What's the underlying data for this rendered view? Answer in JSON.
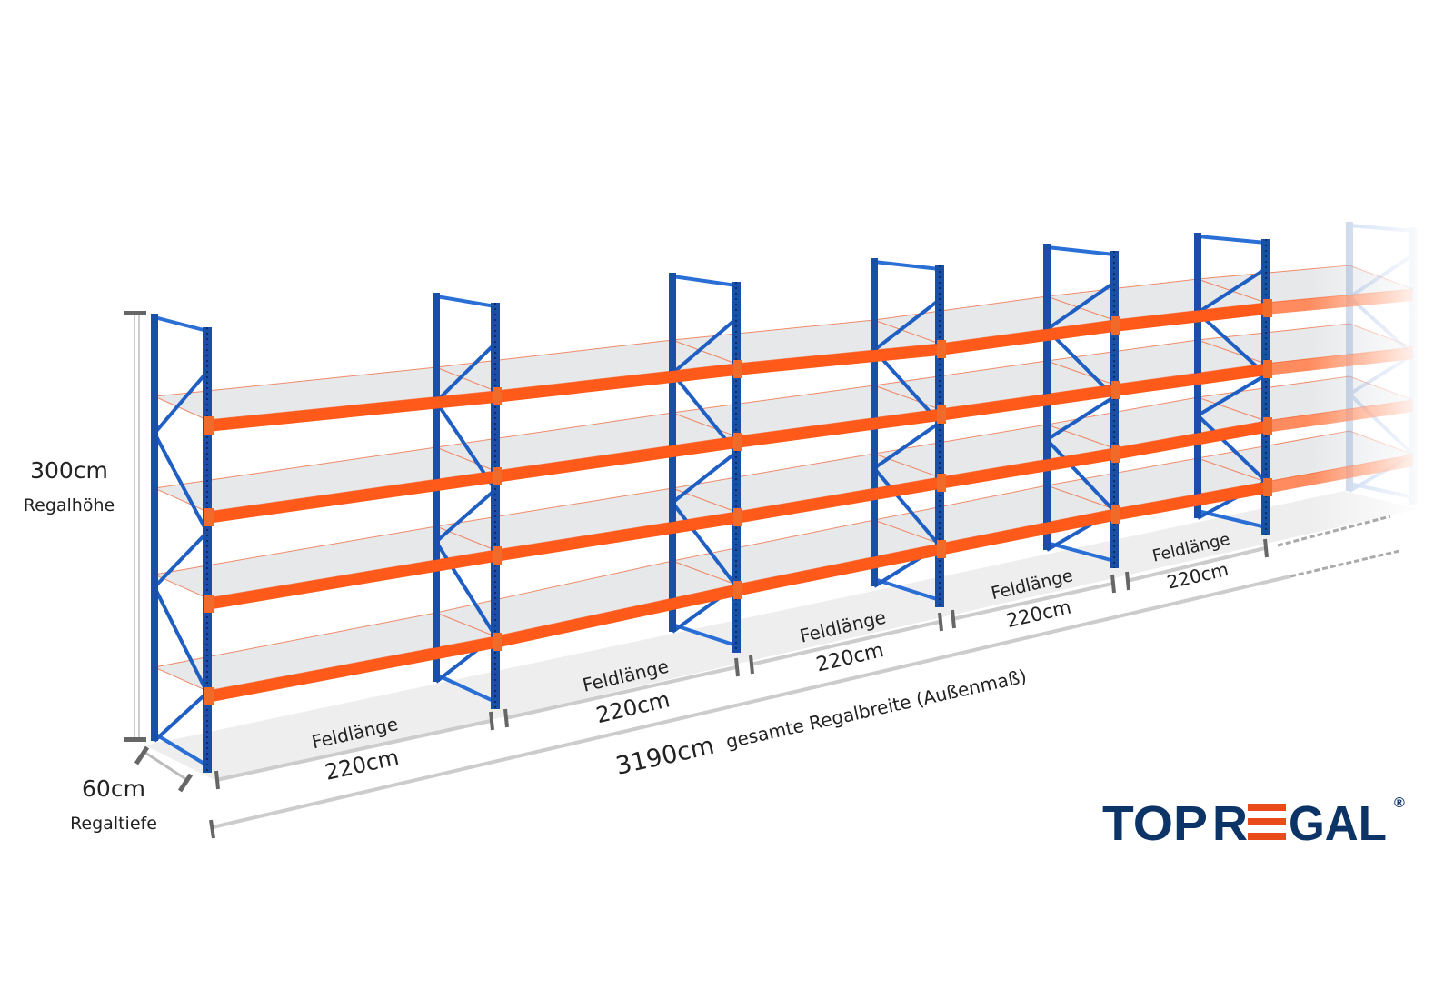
{
  "dimensions": {
    "height_value": "300cm",
    "height_label": "Regalhöhe",
    "depth_value": "60cm",
    "depth_label": "Regaltiefe",
    "total_value": "3190cm",
    "total_label": "gesamte Regalbreite (Außenmaß)",
    "fields": [
      {
        "label": "Feldlänge",
        "value": "220cm"
      },
      {
        "label": "Feldlänge",
        "value": "220cm"
      },
      {
        "label": "Feldlänge",
        "value": "220cm"
      },
      {
        "label": "Feldlänge",
        "value": "220cm"
      },
      {
        "label": "Feldlänge",
        "value": "220cm"
      }
    ]
  },
  "logo": {
    "text": "TOPREGAL",
    "registered": "®",
    "brand_color": "#0d3466",
    "accent_color": "#e84a1a"
  },
  "colors": {
    "upright": "#1a4fa8",
    "beam": "#ff5a1a",
    "shelf": "#e6e8ea"
  }
}
